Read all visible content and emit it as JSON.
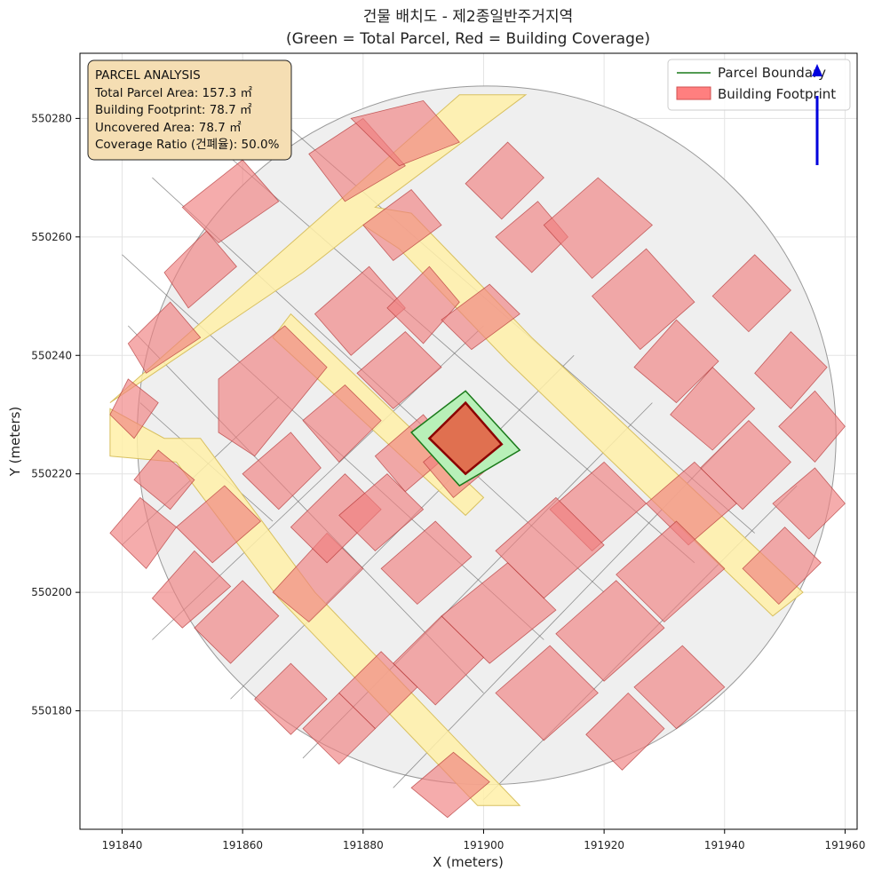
{
  "chart_data": {
    "type": "map",
    "title_line1": "건물 배치도 - 제2종일반주거지역",
    "title_line2": "(Green = Total Parcel, Red = Building Coverage)",
    "xlabel": "X (meters)",
    "ylabel": "Y (meters)",
    "xlim": [
      191833,
      191962
    ],
    "ylim": [
      550160,
      550291
    ],
    "xticks": [
      191840,
      191860,
      191880,
      191900,
      191920,
      191940,
      191960
    ],
    "yticks": [
      550180,
      550200,
      550220,
      550240,
      550260,
      550280
    ],
    "grid": true,
    "legend_placement": "top-right",
    "legend": [
      {
        "label": "Parcel Boundary",
        "kind": "line",
        "color": "#1a7a1a"
      },
      {
        "label": "Building Footprint",
        "kind": "patch",
        "color": "#ff7f7f"
      }
    ],
    "info_box": {
      "lines": [
        "PARCEL ANALYSIS",
        "Total Parcel Area: 157.3 ㎡",
        "Building Footprint: 78.7 ㎡",
        "Uncovered Area: 78.7 ㎡",
        "Coverage Ratio (건폐율): 50.0%"
      ]
    },
    "colors": {
      "background_circle": "#efefef",
      "road": "#fff0a8",
      "building_fill": "#f08080",
      "building_edge": "#b03030",
      "parcel_fill": "#b8f0b8",
      "parcel_edge": "#1a7a1a",
      "target_building_fill": "#e07050",
      "target_building_edge": "#8b0000",
      "north_arrow": "#0000dd"
    },
    "context_circle": {
      "center": [
        191900.5,
        550226.5
      ],
      "radius": 58
    },
    "roads": [
      [
        [
          191838,
          550231
        ],
        [
          191847,
          550226
        ],
        [
          191853,
          550226
        ],
        [
          191872,
          550200
        ],
        [
          191906,
          550164
        ],
        [
          191899,
          550164
        ],
        [
          191866,
          550199
        ],
        [
          191849,
          550222
        ],
        [
          191838,
          550223
        ]
      ],
      [
        [
          191838,
          550232
        ],
        [
          191896,
          550284
        ],
        [
          191907,
          550284
        ],
        [
          191882,
          550265
        ],
        [
          191888,
          550264
        ],
        [
          191908,
          550243
        ],
        [
          191953,
          550200
        ],
        [
          191948,
          550196
        ],
        [
          191904,
          550239
        ],
        [
          191886,
          550258
        ],
        [
          191880,
          550262
        ],
        [
          191870,
          550254
        ]
      ],
      [
        [
          191868,
          550247
        ],
        [
          191900,
          550216
        ],
        [
          191897,
          550213
        ],
        [
          191865,
          550243
        ]
      ]
    ],
    "parcel": [
      [
        191897,
        550234
      ],
      [
        191888,
        550227
      ],
      [
        191896,
        550218
      ],
      [
        191906,
        550224
      ]
    ],
    "target_building": [
      [
        191897,
        550232
      ],
      [
        191891,
        550226
      ],
      [
        191897,
        550220
      ],
      [
        191903,
        550225
      ]
    ],
    "buildings": [
      [
        [
          191871,
          550274
        ],
        [
          191877,
          550266
        ],
        [
          191887,
          550272
        ],
        [
          191880,
          550280
        ]
      ],
      [
        [
          191878,
          550280
        ],
        [
          191886,
          550272
        ],
        [
          191896,
          550276
        ],
        [
          191890,
          550283
        ]
      ],
      [
        [
          191850,
          550265
        ],
        [
          191856,
          550259
        ],
        [
          191866,
          550266
        ],
        [
          191860,
          550273
        ]
      ],
      [
        [
          191847,
          550254
        ],
        [
          191851,
          550248
        ],
        [
          191859,
          550255
        ],
        [
          191854,
          550261
        ]
      ],
      [
        [
          191841,
          550242
        ],
        [
          191844,
          550237
        ],
        [
          191853,
          550243
        ],
        [
          191848,
          550249
        ]
      ],
      [
        [
          191838,
          550230
        ],
        [
          191842,
          550226
        ],
        [
          191846,
          550232
        ],
        [
          191841,
          550236
        ]
      ],
      [
        [
          191856,
          550227
        ],
        [
          191862,
          550223
        ],
        [
          191874,
          550238
        ],
        [
          191867,
          550245
        ],
        [
          191856,
          550236
        ]
      ],
      [
        [
          191860,
          550220
        ],
        [
          191866,
          550214
        ],
        [
          191873,
          550221
        ],
        [
          191868,
          550227
        ]
      ],
      [
        [
          191842,
          550219
        ],
        [
          191848,
          550214
        ],
        [
          191852,
          550219
        ],
        [
          191846,
          550224
        ]
      ],
      [
        [
          191849,
          550211
        ],
        [
          191855,
          550205
        ],
        [
          191863,
          550212
        ],
        [
          191857,
          550218
        ]
      ],
      [
        [
          191838,
          550210
        ],
        [
          191844,
          550204
        ],
        [
          191849,
          550211
        ],
        [
          191843,
          550216
        ]
      ],
      [
        [
          191845,
          550199
        ],
        [
          191850,
          550194
        ],
        [
          191858,
          550201
        ],
        [
          191852,
          550207
        ]
      ],
      [
        [
          191852,
          550194
        ],
        [
          191858,
          550188
        ],
        [
          191866,
          550196
        ],
        [
          191860,
          550202
        ]
      ],
      [
        [
          191865,
          550200
        ],
        [
          191871,
          550195
        ],
        [
          191880,
          550204
        ],
        [
          191874,
          550210
        ]
      ],
      [
        [
          191868,
          550211
        ],
        [
          191874,
          550205
        ],
        [
          191883,
          550214
        ],
        [
          191877,
          550220
        ]
      ],
      [
        [
          191870,
          550229
        ],
        [
          191876,
          550222
        ],
        [
          191883,
          550229
        ],
        [
          191877,
          550235
        ]
      ],
      [
        [
          191872,
          550247
        ],
        [
          191878,
          550240
        ],
        [
          191887,
          550248
        ],
        [
          191881,
          550255
        ]
      ],
      [
        [
          191880,
          550262
        ],
        [
          191885,
          550256
        ],
        [
          191893,
          550262
        ],
        [
          191888,
          550268
        ]
      ],
      [
        [
          191884,
          550248
        ],
        [
          191890,
          550242
        ],
        [
          191896,
          550249
        ],
        [
          191891,
          550255
        ]
      ],
      [
        [
          191879,
          550237
        ],
        [
          191885,
          550231
        ],
        [
          191893,
          550238
        ],
        [
          191887,
          550244
        ]
      ],
      [
        [
          191882,
          550223
        ],
        [
          191887,
          550217
        ],
        [
          191895,
          550224
        ],
        [
          191890,
          550230
        ]
      ],
      [
        [
          191876,
          550213
        ],
        [
          191882,
          550207
        ],
        [
          191890,
          550214
        ],
        [
          191884,
          550220
        ]
      ],
      [
        [
          191883,
          550204
        ],
        [
          191889,
          550198
        ],
        [
          191898,
          550206
        ],
        [
          191892,
          550212
        ]
      ],
      [
        [
          191890,
          550222
        ],
        [
          191895,
          550216
        ],
        [
          191902,
          550222
        ],
        [
          191897,
          550228
        ]
      ],
      [
        [
          191893,
          550246
        ],
        [
          191898,
          550241
        ],
        [
          191906,
          550247
        ],
        [
          191901,
          550252
        ]
      ],
      [
        [
          191897,
          550269
        ],
        [
          191903,
          550263
        ],
        [
          191910,
          550270
        ],
        [
          191904,
          550276
        ]
      ],
      [
        [
          191902,
          550260
        ],
        [
          191908,
          550254
        ],
        [
          191914,
          550260
        ],
        [
          191909,
          550266
        ]
      ],
      [
        [
          191910,
          550262
        ],
        [
          191918,
          550253
        ],
        [
          191928,
          550262
        ],
        [
          191919,
          550270
        ]
      ],
      [
        [
          191918,
          550250
        ],
        [
          191926,
          550241
        ],
        [
          191935,
          550249
        ],
        [
          191927,
          550258
        ]
      ],
      [
        [
          191925,
          550238
        ],
        [
          191932,
          550232
        ],
        [
          191939,
          550239
        ],
        [
          191932,
          550246
        ]
      ],
      [
        [
          191931,
          550230
        ],
        [
          191938,
          550224
        ],
        [
          191945,
          550231
        ],
        [
          191938,
          550238
        ]
      ],
      [
        [
          191938,
          550250
        ],
        [
          191944,
          550244
        ],
        [
          191951,
          550251
        ],
        [
          191945,
          550257
        ]
      ],
      [
        [
          191945,
          550237
        ],
        [
          191951,
          550231
        ],
        [
          191957,
          550238
        ],
        [
          191951,
          550244
        ]
      ],
      [
        [
          191949,
          550228
        ],
        [
          191955,
          550222
        ],
        [
          191960,
          550228
        ],
        [
          191955,
          550234
        ]
      ],
      [
        [
          191948,
          550215
        ],
        [
          191954,
          550209
        ],
        [
          191960,
          550215
        ],
        [
          191955,
          550221
        ]
      ],
      [
        [
          191943,
          550204
        ],
        [
          191949,
          550198
        ],
        [
          191956,
          550205
        ],
        [
          191950,
          550211
        ]
      ],
      [
        [
          191936,
          550221
        ],
        [
          191943,
          550214
        ],
        [
          191951,
          550222
        ],
        [
          191944,
          550229
        ]
      ],
      [
        [
          191927,
          550215
        ],
        [
          191934,
          550208
        ],
        [
          191942,
          550215
        ],
        [
          191935,
          550222
        ]
      ],
      [
        [
          191911,
          550214
        ],
        [
          191918,
          550207
        ],
        [
          191927,
          550215
        ],
        [
          191920,
          550222
        ]
      ],
      [
        [
          191902,
          550207
        ],
        [
          191910,
          550199
        ],
        [
          191920,
          550208
        ],
        [
          191912,
          550216
        ]
      ],
      [
        [
          191893,
          550196
        ],
        [
          191901,
          550188
        ],
        [
          191912,
          550197
        ],
        [
          191904,
          550205
        ]
      ],
      [
        [
          191885,
          550188
        ],
        [
          191892,
          550181
        ],
        [
          191900,
          550189
        ],
        [
          191893,
          550196
        ]
      ],
      [
        [
          191876,
          550183
        ],
        [
          191882,
          550177
        ],
        [
          191889,
          550184
        ],
        [
          191883,
          550190
        ]
      ],
      [
        [
          191870,
          550177
        ],
        [
          191876,
          550171
        ],
        [
          191882,
          550177
        ],
        [
          191876,
          550183
        ]
      ],
      [
        [
          191862,
          550182
        ],
        [
          191868,
          550176
        ],
        [
          191874,
          550182
        ],
        [
          191868,
          550188
        ]
      ],
      [
        [
          191902,
          550183
        ],
        [
          191910,
          550175
        ],
        [
          191919,
          550183
        ],
        [
          191911,
          550191
        ]
      ],
      [
        [
          191912,
          550193
        ],
        [
          191920,
          550185
        ],
        [
          191930,
          550194
        ],
        [
          191922,
          550202
        ]
      ],
      [
        [
          191922,
          550203
        ],
        [
          191930,
          550195
        ],
        [
          191940,
          550204
        ],
        [
          191932,
          550212
        ]
      ],
      [
        [
          191925,
          550184
        ],
        [
          191932,
          550177
        ],
        [
          191940,
          550184
        ],
        [
          191933,
          550191
        ]
      ],
      [
        [
          191917,
          550176
        ],
        [
          191923,
          550170
        ],
        [
          191930,
          550177
        ],
        [
          191924,
          550183
        ]
      ],
      [
        [
          191888,
          550167
        ],
        [
          191894,
          550162
        ],
        [
          191901,
          550168
        ],
        [
          191895,
          550173
        ]
      ]
    ],
    "parcel_lines": [
      [
        [
          191845,
          550270
        ],
        [
          191920,
          550200
        ]
      ],
      [
        [
          191855,
          550276
        ],
        [
          191935,
          550205
        ]
      ],
      [
        [
          191866,
          550280
        ],
        [
          191945,
          550210
        ]
      ],
      [
        [
          191840,
          550257
        ],
        [
          191910,
          550192
        ]
      ],
      [
        [
          191841,
          550245
        ],
        [
          191900,
          550183
        ]
      ],
      [
        [
          191845,
          550192
        ],
        [
          191900,
          550245
        ]
      ],
      [
        [
          191858,
          550182
        ],
        [
          191915,
          550240
        ]
      ],
      [
        [
          191870,
          550172
        ],
        [
          191928,
          550232
        ]
      ],
      [
        [
          191885,
          550167
        ],
        [
          191941,
          550226
        ]
      ],
      [
        [
          191900,
          550165
        ],
        [
          191952,
          550218
        ]
      ],
      [
        [
          191843,
          550232
        ],
        [
          191865,
          550212
        ]
      ],
      [
        [
          191840,
          550208
        ],
        [
          191866,
          550233
        ]
      ]
    ]
  }
}
